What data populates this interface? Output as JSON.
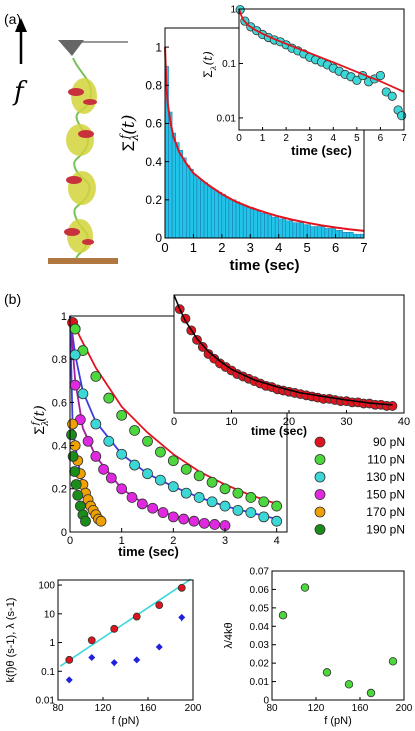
{
  "panels": {
    "a": {
      "label": "(a)",
      "force_symbol": "f"
    },
    "b": {
      "label": "(b)"
    }
  },
  "chart_data": [
    {
      "id": "a_main",
      "type": "bar",
      "xlabel": "time (sec)",
      "ylabel": "Σλf(t)",
      "xlim": [
        0,
        7
      ],
      "ylim": [
        0,
        1.1
      ],
      "xticks": [
        0,
        1,
        2,
        3,
        4,
        5,
        6,
        7
      ],
      "yticks": [
        0,
        0.2,
        0.4,
        0.6,
        0.8,
        1
      ],
      "ytick_labels": [
        "0",
        "0.2",
        "0.4",
        "0.6",
        "0.8",
        "1"
      ],
      "bar_width": 0.125,
      "bar_x": [
        0.0625,
        0.1875,
        0.3125,
        0.4375,
        0.5625,
        0.6875,
        0.8125,
        0.9375,
        1.0625,
        1.1875,
        1.3125,
        1.4375,
        1.5625,
        1.6875,
        1.8125,
        1.9375,
        2.0625,
        2.1875,
        2.3125,
        2.4375,
        2.5625,
        2.6875,
        2.8125,
        2.9375,
        3.0625,
        3.1875,
        3.3125,
        3.4375,
        3.5625,
        3.6875,
        3.8125,
        3.9375,
        4.0625,
        4.1875,
        4.3125,
        4.4375,
        4.5625,
        4.6875,
        4.8125,
        4.9375,
        5.0625,
        5.1875,
        5.3125,
        5.4375,
        5.5625,
        5.6875,
        5.8125,
        5.9375,
        6.0625,
        6.1875,
        6.3125,
        6.4375,
        6.5625,
        6.6875,
        6.8125,
        6.9375
      ],
      "bar_values": [
        0.9,
        0.66,
        0.55,
        0.5,
        0.46,
        0.42,
        0.38,
        0.36,
        0.33,
        0.31,
        0.3,
        0.29,
        0.27,
        0.26,
        0.25,
        0.24,
        0.23,
        0.21,
        0.2,
        0.2,
        0.19,
        0.18,
        0.17,
        0.16,
        0.16,
        0.15,
        0.14,
        0.13,
        0.13,
        0.12,
        0.11,
        0.11,
        0.1,
        0.1,
        0.09,
        0.09,
        0.08,
        0.08,
        0.08,
        0.07,
        0.07,
        0.06,
        0.06,
        0.06,
        0.06,
        0.05,
        0.05,
        0.05,
        0.04,
        0.04,
        0.03,
        0.03,
        0.03,
        0.02,
        0.02,
        0.02
      ],
      "fit_x": [
        0,
        0.05,
        0.1,
        0.2,
        0.3,
        0.5,
        0.75,
        1,
        1.5,
        2,
        2.5,
        3,
        3.5,
        4,
        4.5,
        5,
        5.5,
        6,
        6.5,
        7
      ],
      "fit_y": [
        1,
        0.8,
        0.7,
        0.6,
        0.53,
        0.45,
        0.39,
        0.34,
        0.28,
        0.23,
        0.19,
        0.16,
        0.135,
        0.113,
        0.095,
        0.08,
        0.066,
        0.055,
        0.045,
        0.037
      ],
      "bar_color": "#20c4e8",
      "fit_color": "#e0141e"
    },
    {
      "id": "a_inset",
      "type": "scatter",
      "xlabel": "time (sec)",
      "ylabel": "Σλ(t)",
      "xlim": [
        0,
        7
      ],
      "ylim_log": [
        0.006,
        1
      ],
      "xticks": [
        0,
        1,
        2,
        3,
        4,
        5,
        6,
        7
      ],
      "yticks": [
        0.01,
        0.1,
        1
      ],
      "ytick_labels": [
        "0.01",
        "0.1",
        "1"
      ],
      "points_x": [
        0.05,
        0.25,
        0.5,
        0.75,
        1,
        1.25,
        1.5,
        1.75,
        2,
        2.25,
        2.5,
        2.75,
        3,
        3.25,
        3.5,
        3.75,
        4,
        4.25,
        4.5,
        4.75,
        5,
        5.25,
        5.5,
        5.75,
        6,
        6.25,
        6.5,
        6.75,
        6.9
      ],
      "points_y": [
        0.97,
        0.6,
        0.47,
        0.4,
        0.34,
        0.3,
        0.27,
        0.25,
        0.22,
        0.19,
        0.17,
        0.15,
        0.13,
        0.117,
        0.106,
        0.094,
        0.082,
        0.072,
        0.063,
        0.057,
        0.049,
        0.06,
        0.046,
        0.052,
        0.06,
        0.03,
        0.025,
        0.014,
        0.011
      ],
      "fit_x": [
        0,
        0.1,
        0.2,
        0.4,
        0.7,
        1,
        1.5,
        2,
        3,
        4,
        5,
        6,
        7
      ],
      "fit_y": [
        1,
        0.75,
        0.62,
        0.5,
        0.41,
        0.35,
        0.28,
        0.23,
        0.155,
        0.105,
        0.07,
        0.047,
        0.03
      ],
      "point_color": "#3cd8d8",
      "fit_color": "#e0141e"
    },
    {
      "id": "b_main",
      "type": "scatter",
      "xlabel": "time (sec)",
      "ylabel": "Σλf(t)",
      "xlim": [
        0,
        4.2
      ],
      "ylim": [
        0,
        1.0
      ],
      "xticks": [
        0,
        1,
        2,
        3,
        4
      ],
      "yticks": [
        0,
        0.2,
        0.4,
        0.6,
        0.8,
        1
      ],
      "ytick_labels": [
        "0",
        "0.2",
        "0.4",
        "0.6",
        "0.8",
        "1"
      ],
      "legend_position": "right",
      "series": [
        {
          "name": "90 pN",
          "color": "#e0141e",
          "x": [
            0.05,
            0.1
          ],
          "y": [
            0.97,
            0.94
          ]
        },
        {
          "name": "110 pN",
          "color": "#4cd83c",
          "x": [
            0.1,
            0.25,
            0.5,
            0.75,
            1,
            1.25,
            1.5,
            1.75,
            2,
            2.25,
            2.5,
            2.75,
            3,
            3.25,
            3.5,
            3.75,
            4
          ],
          "y": [
            0.94,
            0.84,
            0.72,
            0.62,
            0.54,
            0.47,
            0.42,
            0.37,
            0.33,
            0.29,
            0.26,
            0.23,
            0.2,
            0.18,
            0.16,
            0.14,
            0.12
          ]
        },
        {
          "name": "130 pN",
          "color": "#3cd8d8",
          "x": [
            0.1,
            0.25,
            0.5,
            0.75,
            1,
            1.25,
            1.5,
            1.75,
            2,
            2.25,
            2.5,
            2.75,
            3,
            3.25,
            3.5,
            3.75,
            4
          ],
          "y": [
            0.82,
            0.64,
            0.5,
            0.42,
            0.36,
            0.31,
            0.27,
            0.24,
            0.21,
            0.18,
            0.16,
            0.14,
            0.12,
            0.1,
            0.09,
            0.07,
            0.05
          ]
        },
        {
          "name": "150 pN",
          "color": "#e028e0",
          "x": [
            0.1,
            0.2,
            0.35,
            0.5,
            0.65,
            0.8,
            1,
            1.2,
            1.4,
            1.6,
            1.8,
            2,
            2.2,
            2.4,
            2.6,
            2.8,
            3
          ],
          "y": [
            0.68,
            0.52,
            0.42,
            0.35,
            0.29,
            0.25,
            0.2,
            0.16,
            0.13,
            0.11,
            0.09,
            0.07,
            0.06,
            0.05,
            0.04,
            0.035,
            0.03
          ]
        },
        {
          "name": "170 pN",
          "color": "#f0a000",
          "x": [
            0.05,
            0.1,
            0.15,
            0.2,
            0.25,
            0.3,
            0.35,
            0.4,
            0.45,
            0.5,
            0.55,
            0.6
          ],
          "y": [
            0.5,
            0.4,
            0.33,
            0.27,
            0.22,
            0.18,
            0.15,
            0.12,
            0.1,
            0.08,
            0.06,
            0.05
          ]
        },
        {
          "name": "190 pN",
          "color": "#1a8c1a",
          "x": [
            0.03,
            0.06,
            0.09,
            0.12,
            0.15,
            0.2,
            0.25,
            0.3
          ],
          "y": [
            0.45,
            0.35,
            0.28,
            0.22,
            0.17,
            0.12,
            0.08,
            0.05
          ]
        }
      ],
      "fits": [
        {
          "color": "#e0141e",
          "x": [
            0,
            0.2,
            0.5,
            1,
            1.5,
            2,
            2.5,
            3,
            3.5,
            4
          ],
          "y": [
            1,
            0.9,
            0.76,
            0.58,
            0.46,
            0.36,
            0.28,
            0.22,
            0.17,
            0.13
          ]
        },
        {
          "color": "#3c3ce0",
          "x": [
            0,
            0.1,
            0.25,
            0.5,
            1,
            1.5,
            2,
            2.5,
            3,
            3.5,
            4
          ],
          "y": [
            1,
            0.82,
            0.65,
            0.51,
            0.36,
            0.27,
            0.21,
            0.16,
            0.12,
            0.09,
            0.06
          ]
        },
        {
          "color": "#a020a0",
          "x": [
            0,
            0.1,
            0.25,
            0.5,
            1,
            1.5,
            2,
            2.5,
            3
          ],
          "y": [
            1,
            0.7,
            0.48,
            0.35,
            0.2,
            0.12,
            0.075,
            0.045,
            0.03
          ]
        },
        {
          "color": "#3c3ce0",
          "x": [
            0,
            0.05,
            0.1,
            0.2,
            0.3,
            0.4,
            0.5,
            0.6
          ],
          "y": [
            1,
            0.5,
            0.4,
            0.27,
            0.18,
            0.12,
            0.08,
            0.05
          ]
        }
      ]
    },
    {
      "id": "b_inset",
      "type": "scatter",
      "xlabel": "time (sec)",
      "xlim": [
        0,
        40
      ],
      "ylim": [
        0,
        1.0
      ],
      "xticks": [
        0,
        10,
        20,
        30,
        40
      ],
      "points_x": [
        1,
        2,
        3,
        4,
        5,
        6,
        7,
        8,
        9,
        10,
        11,
        12,
        13,
        14,
        15,
        16,
        17,
        18,
        19,
        20,
        21,
        22,
        23,
        24,
        25,
        26,
        27,
        28,
        29,
        30,
        31,
        32,
        33,
        34,
        35,
        36,
        37,
        38
      ],
      "points_y": [
        0.88,
        0.8,
        0.7,
        0.62,
        0.56,
        0.5,
        0.46,
        0.42,
        0.39,
        0.36,
        0.33,
        0.31,
        0.29,
        0.27,
        0.25,
        0.23,
        0.22,
        0.2,
        0.19,
        0.18,
        0.17,
        0.16,
        0.15,
        0.14,
        0.13,
        0.12,
        0.12,
        0.11,
        0.1,
        0.1,
        0.09,
        0.09,
        0.08,
        0.08,
        0.07,
        0.07,
        0.06,
        0.06
      ],
      "fit_x": [
        0,
        1,
        2,
        4,
        6,
        8,
        10,
        14,
        18,
        22,
        26,
        30,
        34,
        38
      ],
      "fit_y": [
        1,
        0.88,
        0.78,
        0.63,
        0.52,
        0.44,
        0.37,
        0.28,
        0.22,
        0.17,
        0.14,
        0.11,
        0.085,
        0.068
      ],
      "point_color": "#e0141e",
      "fit_color": "#000000"
    },
    {
      "id": "b_rate",
      "type": "scatter",
      "xlabel": "f (pN)",
      "ylabel": "k(f)θ (s-1), λ (s-1)",
      "xlim": [
        80,
        200
      ],
      "ylim_log": [
        0.01,
        150
      ],
      "xticks": [
        80,
        120,
        160,
        200
      ],
      "yticks": [
        0.01,
        0.1,
        1,
        10,
        100
      ],
      "ytick_labels": [
        "0.01",
        "0.1",
        "1",
        "10",
        "100"
      ],
      "series": [
        {
          "name": "k",
          "color": "#e0141e",
          "x": [
            90,
            110,
            130,
            150,
            170,
            190
          ],
          "y": [
            0.25,
            1.2,
            3,
            8,
            20,
            80
          ]
        },
        {
          "name": "lambda",
          "color": "#2020e0",
          "x": [
            90,
            110,
            130,
            150,
            170,
            190
          ],
          "y": [
            0.05,
            0.3,
            0.2,
            0.25,
            0.7,
            7.5
          ],
          "errors": [
            0.01,
            0.05,
            0.05,
            0.05,
            0.1,
            2
          ]
        }
      ],
      "fit": {
        "color": "#3cd8d8",
        "x": [
          82,
          198
        ],
        "y": [
          0.15,
          160
        ]
      }
    },
    {
      "id": "b_ratio",
      "type": "scatter",
      "xlabel": "f (pN)",
      "ylabel": "λ/4kθ",
      "xlim": [
        80,
        200
      ],
      "ylim": [
        0,
        0.07
      ],
      "xticks": [
        80,
        120,
        160,
        200
      ],
      "yticks": [
        0,
        0.01,
        0.02,
        0.03,
        0.04,
        0.05,
        0.06,
        0.07
      ],
      "ytick_labels": [
        "0",
        "0.01",
        "0.02",
        "0.03",
        "0.04",
        "0.05",
        "0.06",
        "0.07"
      ],
      "x": [
        90,
        110,
        130,
        150,
        170,
        190
      ],
      "y": [
        0.046,
        0.061,
        0.015,
        0.0085,
        0.0038,
        0.021
      ],
      "point_color": "#4cd83c"
    }
  ]
}
